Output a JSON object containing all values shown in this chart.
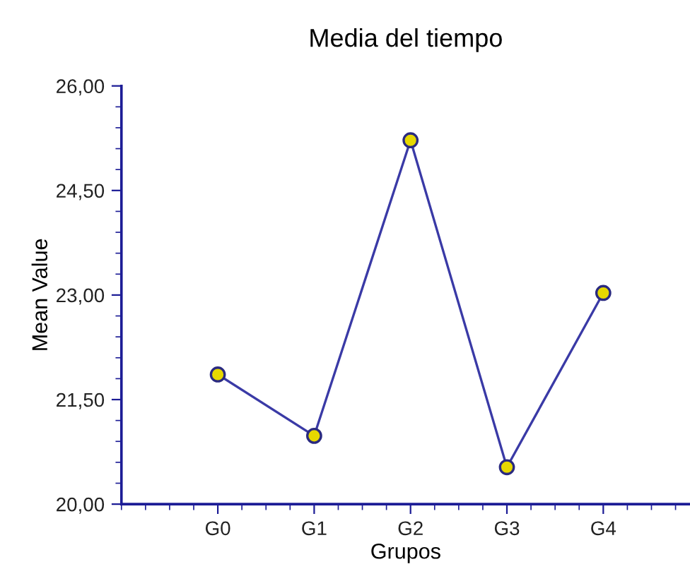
{
  "chart_data": {
    "type": "line",
    "title": "Media del tiempo",
    "xlabel": "Grupos",
    "ylabel": "Mean Value",
    "categories": [
      "G0",
      "G1",
      "G2",
      "G3",
      "G4"
    ],
    "series": [
      {
        "color": "#3a3aa6",
        "values": [
          21.86,
          20.98,
          25.22,
          20.53,
          23.03
        ]
      }
    ],
    "ylim": [
      20,
      26
    ],
    "yticks": [
      {
        "value": 20,
        "label": "20,00"
      },
      {
        "value": 21.5,
        "label": "21,50"
      },
      {
        "value": 23,
        "label": "23,00"
      },
      {
        "value": 24.5,
        "label": "24,50"
      },
      {
        "value": 26,
        "label": "26,00"
      }
    ],
    "marker": "circle",
    "line_style": "solid",
    "grid": false,
    "legend": false
  }
}
